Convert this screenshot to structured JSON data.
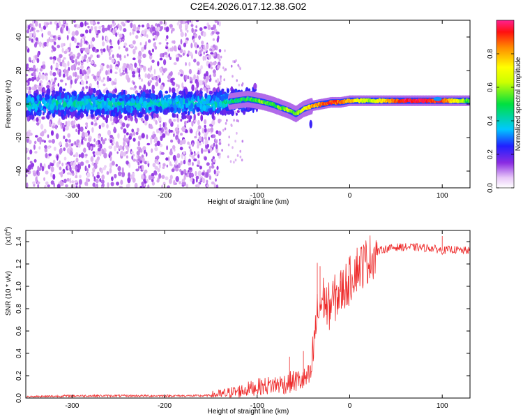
{
  "figure_title": "C2E4.2026.017.12.38.G02",
  "chart_data": [
    {
      "type": "heatmap",
      "title": "C2E4.2026.017.12.38.G02",
      "xlabel": "Height of straight line (km)",
      "ylabel": "Frequency (Hz)",
      "xlim": [
        -350,
        130
      ],
      "ylim": [
        -50,
        50
      ],
      "xticks": [
        -300,
        -200,
        -100,
        0,
        100
      ],
      "xtick_labels": [
        "-300",
        "-200",
        "-100",
        "0",
        "100"
      ],
      "yticks": [
        -40,
        -20,
        0,
        20,
        40
      ],
      "ytick_labels": [
        "-40",
        "-20",
        "0",
        "20",
        "40"
      ],
      "colorbar": {
        "label": "Normalized spectral amplitude",
        "range": [
          0,
          1
        ],
        "ticks": [
          0.0,
          0.2,
          0.4,
          0.6,
          0.8
        ],
        "tick_labels": [
          "0.0",
          "0.2",
          "0.4",
          "0.6",
          "0.8"
        ]
      },
      "ridge": {
        "x": [
          -350,
          -300,
          -250,
          -200,
          -150,
          -130,
          -110,
          -95,
          -85,
          -75,
          -65,
          -58,
          -50,
          -40,
          -30,
          -20,
          -10,
          0,
          20,
          60,
          100,
          130
        ],
        "freq": [
          0,
          0.5,
          0,
          0.5,
          0.5,
          1.5,
          3,
          1.5,
          0,
          -2,
          -4,
          -6,
          -3,
          -1,
          0,
          1,
          1,
          2,
          2,
          2,
          2,
          2
        ],
        "amplitude": [
          0.3,
          0.3,
          0.3,
          0.3,
          0.35,
          0.45,
          0.5,
          0.55,
          0.5,
          0.55,
          0.6,
          0.55,
          0.65,
          0.8,
          0.85,
          0.9,
          0.85,
          0.8,
          0.6,
          0.95,
          0.9,
          0.5
        ]
      }
    },
    {
      "type": "line",
      "xlabel": "Height of straight line (km)",
      "ylabel": "SNR (10 * v/v)",
      "y_scale_note": "(x10⁴)",
      "y_scale_base": "(x10",
      "y_scale_exp": "4",
      "y_scale_close": ")",
      "xlim": [
        -350,
        130
      ],
      "ylim": [
        0,
        1.5
      ],
      "xticks": [
        -300,
        -200,
        -100,
        0,
        100
      ],
      "xtick_labels": [
        "-300",
        "-200",
        "-100",
        "0",
        "100"
      ],
      "yticks": [
        0.0,
        0.2,
        0.4,
        0.6,
        0.8,
        1.0,
        1.2,
        1.4
      ],
      "ytick_labels": [
        "0.0",
        "0.2",
        "0.4",
        "0.6",
        "0.8",
        "1.0",
        "1.2",
        "1.4"
      ],
      "series": [
        {
          "name": "SNR",
          "color": "#ee2a2a",
          "x": [
            -350,
            -300,
            -250,
            -200,
            -160,
            -140,
            -120,
            -100,
            -80,
            -70,
            -60,
            -50,
            -42,
            -36,
            -33,
            -28,
            -24,
            -20,
            -15,
            -10,
            -5,
            0,
            5,
            15,
            25,
            35,
            50,
            70,
            90,
            100,
            110,
            120,
            130
          ],
          "y": [
            0.01,
            0.02,
            0.02,
            0.02,
            0.02,
            0.03,
            0.06,
            0.1,
            0.12,
            0.13,
            0.15,
            0.16,
            0.2,
            0.7,
            0.8,
            0.9,
            0.8,
            0.85,
            0.9,
            0.95,
            1.0,
            1.05,
            1.15,
            1.2,
            1.28,
            1.33,
            1.35,
            1.35,
            1.34,
            1.32,
            1.33,
            1.32,
            1.32
          ]
        }
      ]
    }
  ]
}
